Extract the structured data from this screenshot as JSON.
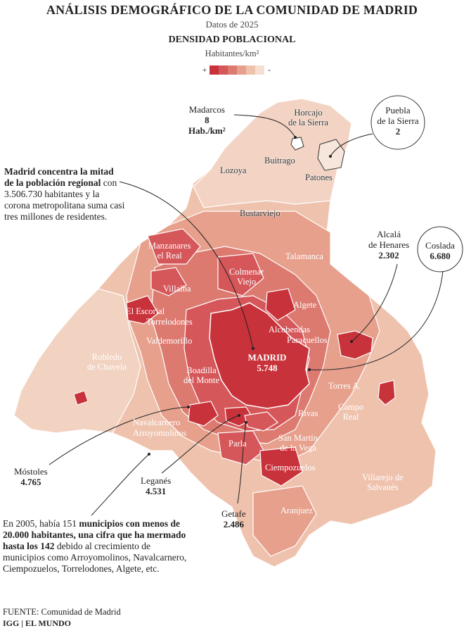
{
  "header": {
    "title": "ANÁLISIS DEMOGRÁFICO DE LA COMUNIDAD DE MADRID",
    "subtitle": "Datos de 2025",
    "section": "DENSIDAD POBLACIONAL",
    "unit": "Habitantes/km²"
  },
  "legend": {
    "plus": "+",
    "minus": "-",
    "colors": [
      "#c8323a",
      "#d5575a",
      "#dc7a70",
      "#e6a08c",
      "#efc2ad",
      "#f6dfd1"
    ]
  },
  "map_labels": {
    "horcajo": "Horcajo",
    "de_la_sierra": "de la Sierra",
    "buitrago": "Buitrago",
    "lozoya": "Lozoya",
    "patones": "Patones",
    "bustarviejo": "Bustarviejo",
    "manzanares_1": "Manzanares",
    "manzanares_2": "el Real",
    "talamanca": "Talamanca",
    "colmenar_1": "Colmenar",
    "colmenar_2": "Viejo",
    "villalba": "Villalba",
    "algete": "Algete",
    "el_escorial": "El Escorial",
    "torrelodones": "Torrelodones",
    "alcobendas": "Alcobendas",
    "paracuellos": "Paracuellos",
    "valdemorillo": "Valdemorillo",
    "robledo_1": "Robledo",
    "robledo_2": "de Chavela",
    "boadilla_1": "Boadilla",
    "boadilla_2": "del Monte",
    "torres": "Torres A.",
    "campo_1": "Campo",
    "campo_2": "Real",
    "navalcarnero": "Navalcarnero",
    "arroyomolinos": "Arroyomolinos",
    "rivas": "Rivas",
    "parla": "Parla",
    "san_martin_1": "San Martín",
    "san_martin_2": "de la Vega",
    "ciempozuelos": "Ciempozuelos",
    "villarejo_1": "Villarejo de",
    "villarejo_2": "Salvanés",
    "aranjuez": "Aranjuez"
  },
  "madrid": {
    "name": "MADRID",
    "value": "5.748"
  },
  "callouts": {
    "madarcos": {
      "name": "Madarcos",
      "value": "8",
      "unit": "Hab./km²"
    },
    "puebla": {
      "name_1": "Puebla",
      "name_2": "de la Sierra",
      "value": "2"
    },
    "alcala": {
      "name_1": "Alcalá",
      "name_2": "de Henares",
      "value": "2.302"
    },
    "coslada": {
      "name": "Coslada",
      "value": "6.680"
    },
    "mostoles": {
      "name": "Móstoles",
      "value": "4.765"
    },
    "leganes": {
      "name": "Leganés",
      "value": "4.531"
    },
    "getafe": {
      "name": "Getafe",
      "value": "2.486"
    }
  },
  "paragraph_1": {
    "bold": "Madrid concentra la mitad de la población regional",
    "rest": " con 3.506.730 habitantes y la corona metropolitana suma casi tres millones de residentes."
  },
  "paragraph_2": {
    "part_1": "En 2005, había 151 ",
    "bold": "municipios con menos de 20.000 habitantes, una cifra que ha mermado hasta los 142",
    "part_2": " debido al crecimiento de municipios como Arroyomolinos, Navalcarnero, Ciempozuelos, Torrelodones, Algete, etc."
  },
  "footer": {
    "source": "FUENTE: Comunidad de Madrid",
    "credit": "IGG | EL MUNDO"
  }
}
